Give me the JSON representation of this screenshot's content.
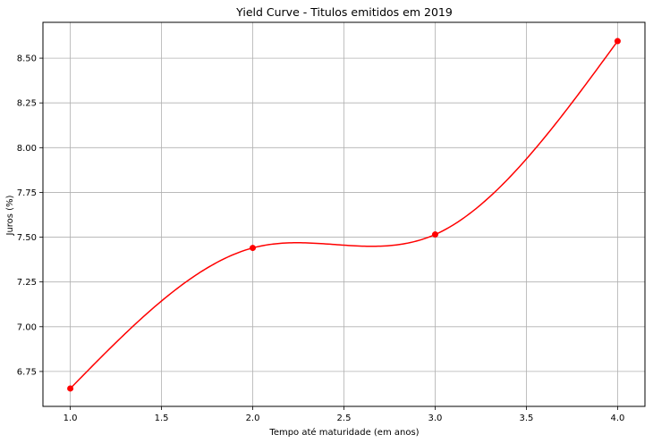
{
  "chart_data": {
    "type": "line",
    "title": "Yield Curve - Titulos emitidos em 2019",
    "xlabel": "Tempo até maturidade (em anos)",
    "ylabel": "Juros (%)",
    "xlim": [
      0.85,
      4.15
    ],
    "ylim": [
      6.555,
      8.7
    ],
    "grid": true,
    "x_ticks": [
      1.0,
      1.5,
      2.0,
      2.5,
      3.0,
      3.5,
      4.0
    ],
    "x_tick_labels": [
      "1.0",
      "1.5",
      "2.0",
      "2.5",
      "3.0",
      "3.5",
      "4.0"
    ],
    "y_ticks": [
      6.75,
      7.0,
      7.25,
      7.5,
      7.75,
      8.0,
      8.25,
      8.5
    ],
    "y_tick_labels": [
      "6.75",
      "7.00",
      "7.25",
      "7.50",
      "7.75",
      "8.00",
      "8.25",
      "8.50"
    ],
    "series": [
      {
        "color": "#ff0000",
        "points": [
          {
            "x": 1.0,
            "y": 6.655
          },
          {
            "x": 2.0,
            "y": 7.44
          },
          {
            "x": 3.0,
            "y": 7.515
          },
          {
            "x": 4.0,
            "y": 8.595
          }
        ]
      }
    ]
  }
}
